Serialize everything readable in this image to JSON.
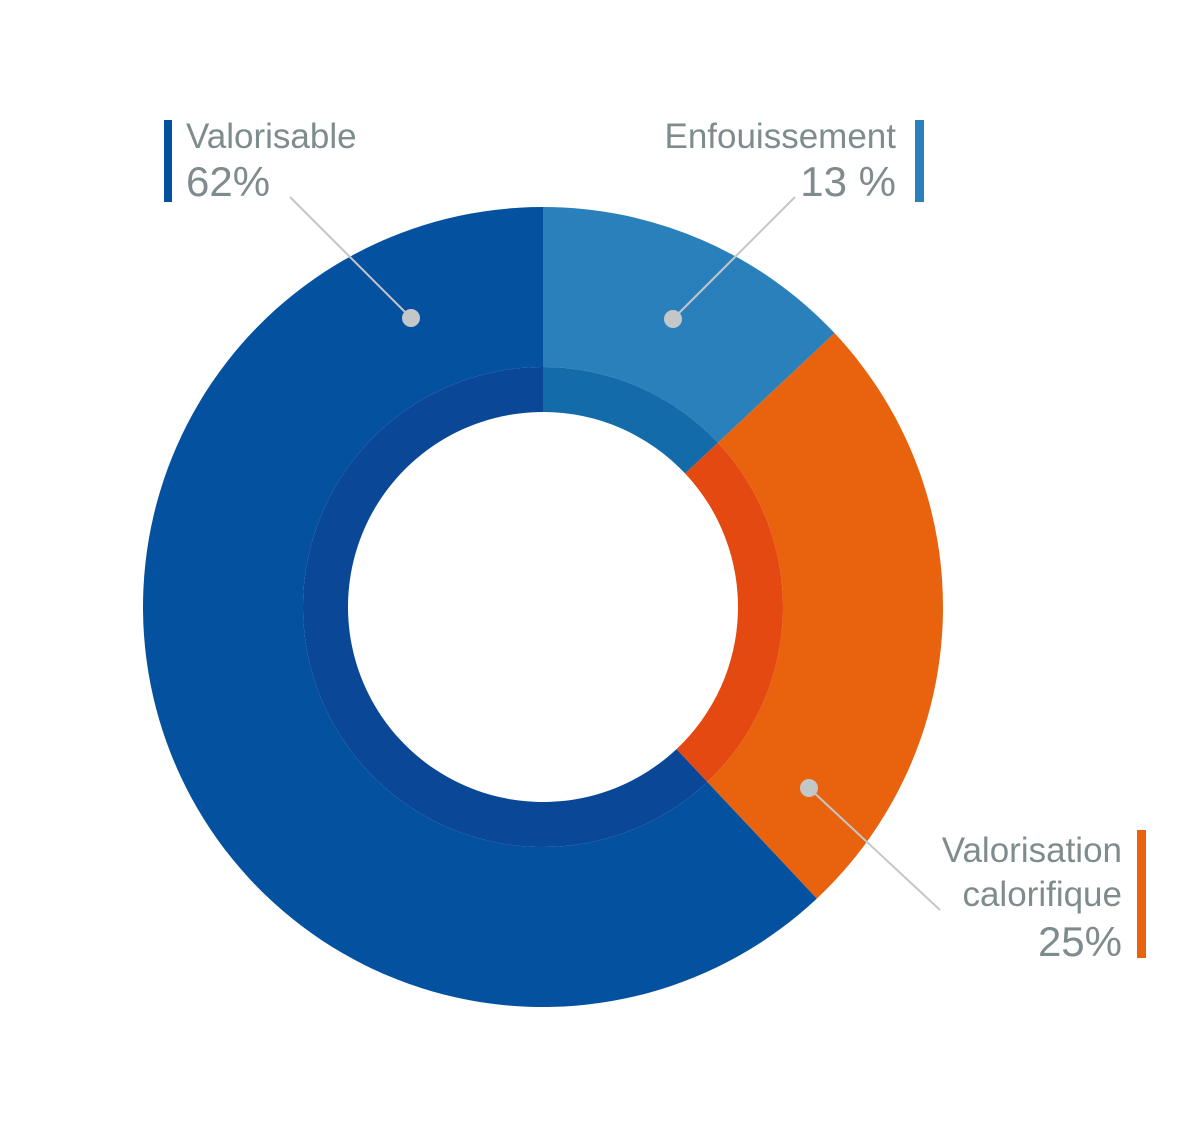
{
  "chart_data": {
    "type": "pie",
    "variant": "donut",
    "slices": [
      {
        "label": "Enfouissement",
        "value_text": "13 %",
        "value": 13,
        "color": "#2a80bb",
        "inner_color": "#136ca9"
      },
      {
        "label": "Valorisation calorifique",
        "label_lines": [
          "Valorisation",
          "calorifique"
        ],
        "value_text": "25%",
        "value": 25,
        "color": "#e9630f",
        "inner_color": "#e54912"
      },
      {
        "label": "Valorisable",
        "value_text": "62%",
        "value": 62,
        "color": "#03519f",
        "inner_color": "#0a4797"
      }
    ],
    "start_angle": "top",
    "direction": "clockwise",
    "label_color": "#7f8c8d",
    "leader_color": "#c4c7ca",
    "legend": "none"
  }
}
